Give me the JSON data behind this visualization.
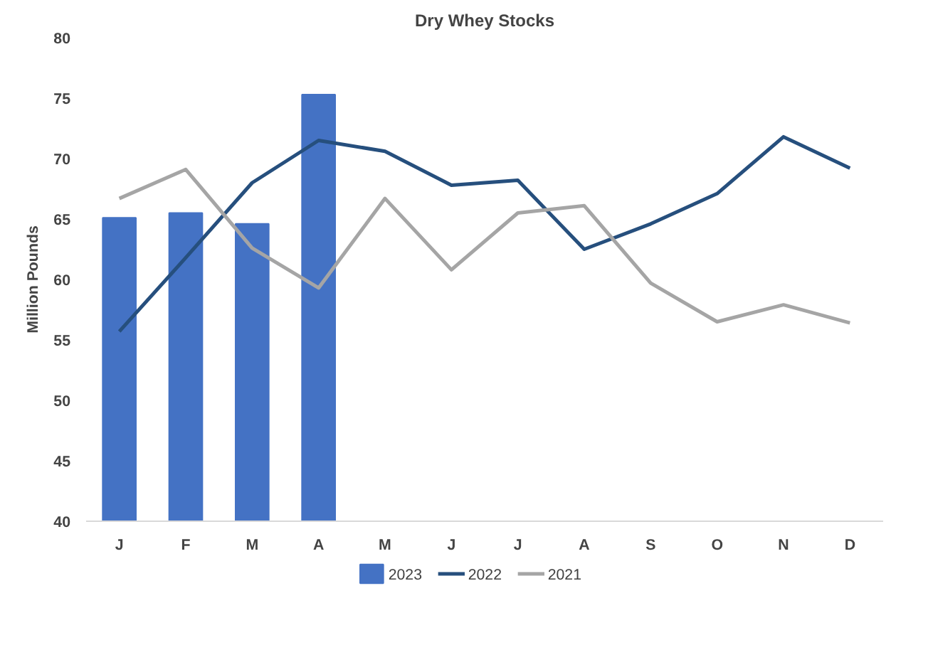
{
  "chart_data": {
    "type": "bar",
    "title": "Dry Whey Stocks",
    "ylabel": "Million Pounds",
    "categories": [
      "J",
      "F",
      "M",
      "A",
      "M",
      "J",
      "J",
      "A",
      "S",
      "O",
      "N",
      "D"
    ],
    "series": [
      {
        "name": "2023",
        "color": "#4472c4",
        "values": [
          65.1,
          65.5,
          64.6,
          75.3,
          null,
          null,
          null,
          null,
          null,
          null,
          null,
          null
        ]
      },
      {
        "name": "2022",
        "type": "line",
        "color": "#264f7d",
        "values": [
          55.7,
          61.8,
          68.0,
          71.5,
          70.6,
          67.8,
          68.2,
          62.5,
          64.6,
          67.1,
          71.8,
          69.2
        ]
      },
      {
        "name": "2021",
        "type": "line",
        "color": "#a5a5a5",
        "values": [
          66.7,
          69.1,
          62.6,
          59.3,
          66.7,
          60.8,
          65.5,
          66.1,
          59.7,
          56.5,
          57.9,
          56.4
        ]
      }
    ],
    "ylim": [
      40,
      80
    ],
    "yticks": [
      40,
      45,
      50,
      55,
      60,
      65,
      70,
      75,
      80
    ],
    "grid": false,
    "legend": "bottom"
  }
}
